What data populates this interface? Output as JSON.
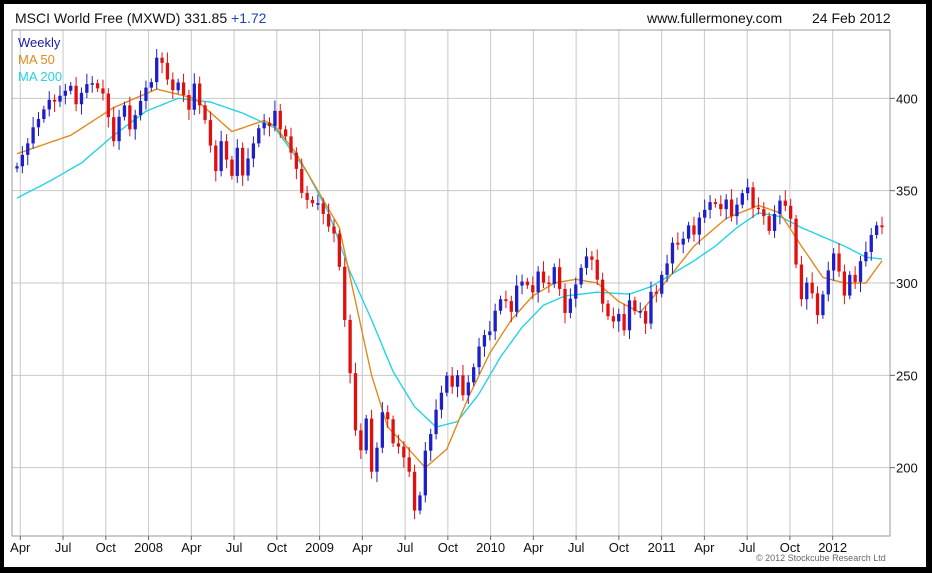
{
  "header": {
    "title": "MSCI World Free (MXWD) 331.85",
    "change": "+1.72",
    "website": "www.fullermoney.com",
    "date": "24 Feb 2012"
  },
  "footer": {
    "copyright": "© 2012 Stockcube Research Ltd"
  },
  "chart_data": {
    "type": "candlestick",
    "x_labels": [
      "Apr",
      "Jul",
      "Oct",
      "2008",
      "Apr",
      "Jul",
      "Oct",
      "2009",
      "Apr",
      "Jul",
      "Oct",
      "2010",
      "Apr",
      "Jul",
      "Oct",
      "2011",
      "Apr",
      "Jul",
      "Oct",
      "2012"
    ],
    "y_ticks": [
      200,
      250,
      300,
      350,
      400
    ],
    "ylim": [
      163,
      437
    ],
    "grid": true,
    "legend_position": "top-left",
    "colors": {
      "up": "#1f1fc8",
      "down": "#e01010",
      "ma50": "#e08a1e",
      "ma200": "#22d4e6",
      "grid": "#c8c8c8"
    },
    "series": [
      {
        "name": "Weekly",
        "style": "candles",
        "anchors": [
          [
            0,
            365
          ],
          [
            2,
            375
          ],
          [
            4,
            390
          ],
          [
            6,
            398
          ],
          [
            8,
            402
          ],
          [
            10,
            405
          ],
          [
            11,
            398
          ],
          [
            12,
            403
          ],
          [
            14,
            410
          ],
          [
            16,
            402
          ],
          [
            17,
            388
          ],
          [
            18,
            378
          ],
          [
            19,
            390
          ],
          [
            20,
            395
          ],
          [
            21,
            385
          ],
          [
            23,
            398
          ],
          [
            25,
            410
          ],
          [
            26,
            422
          ],
          [
            27,
            418
          ],
          [
            28,
            412
          ],
          [
            29,
            405
          ],
          [
            30,
            408
          ],
          [
            31,
            400
          ],
          [
            32,
            395
          ],
          [
            33,
            408
          ],
          [
            34,
            395
          ],
          [
            35,
            390
          ],
          [
            36,
            375
          ],
          [
            37,
            360
          ],
          [
            38,
            375
          ],
          [
            39,
            368
          ],
          [
            40,
            358
          ],
          [
            41,
            372
          ],
          [
            42,
            360
          ],
          [
            43,
            368
          ],
          [
            44,
            375
          ],
          [
            45,
            382
          ],
          [
            46,
            388
          ],
          [
            47,
            385
          ],
          [
            48,
            392
          ],
          [
            49,
            385
          ],
          [
            50,
            380
          ],
          [
            51,
            370
          ],
          [
            52,
            360
          ],
          [
            53,
            350
          ],
          [
            54,
            345
          ],
          [
            55,
            342
          ],
          [
            56,
            345
          ],
          [
            57,
            338
          ],
          [
            58,
            330
          ],
          [
            59,
            325
          ],
          [
            60,
            310
          ],
          [
            61,
            280
          ],
          [
            62,
            250
          ],
          [
            63,
            222
          ],
          [
            64,
            210
          ],
          [
            65,
            226
          ],
          [
            66,
            196
          ],
          [
            67,
            212
          ],
          [
            68,
            230
          ],
          [
            69,
            225
          ],
          [
            70,
            215
          ],
          [
            71,
            212
          ],
          [
            72,
            205
          ],
          [
            73,
            196
          ],
          [
            74,
            178
          ],
          [
            75,
            185
          ],
          [
            76,
            208
          ],
          [
            77,
            220
          ],
          [
            78,
            232
          ],
          [
            79,
            240
          ],
          [
            80,
            248
          ],
          [
            81,
            245
          ],
          [
            82,
            250
          ],
          [
            83,
            238
          ],
          [
            84,
            248
          ],
          [
            85,
            255
          ],
          [
            86,
            265
          ],
          [
            87,
            270
          ],
          [
            88,
            275
          ],
          [
            89,
            285
          ],
          [
            90,
            290
          ],
          [
            91,
            292
          ],
          [
            92,
            285
          ],
          [
            93,
            298
          ],
          [
            95,
            300
          ],
          [
            96,
            295
          ],
          [
            97,
            305
          ],
          [
            98,
            302
          ],
          [
            99,
            300
          ],
          [
            100,
            308
          ],
          [
            101,
            295
          ],
          [
            102,
            285
          ],
          [
            104,
            298
          ],
          [
            105,
            310
          ],
          [
            106,
            315
          ],
          [
            107,
            312
          ],
          [
            108,
            300
          ],
          [
            109,
            290
          ],
          [
            110,
            282
          ],
          [
            111,
            278
          ],
          [
            112,
            285
          ],
          [
            113,
            275
          ],
          [
            114,
            290
          ],
          [
            115,
            283
          ],
          [
            116,
            286
          ],
          [
            117,
            278
          ],
          [
            118,
            294
          ],
          [
            119,
            296
          ],
          [
            120,
            305
          ],
          [
            121,
            310
          ],
          [
            122,
            320
          ],
          [
            123,
            322
          ],
          [
            124,
            324
          ],
          [
            125,
            330
          ],
          [
            126,
            328
          ],
          [
            127,
            336
          ],
          [
            129,
            342
          ],
          [
            130,
            344
          ],
          [
            131,
            340
          ],
          [
            132,
            344
          ],
          [
            133,
            338
          ],
          [
            135,
            348
          ],
          [
            136,
            350
          ],
          [
            137,
            342
          ],
          [
            138,
            340
          ],
          [
            139,
            335
          ],
          [
            140,
            330
          ],
          [
            141,
            338
          ],
          [
            142,
            344
          ],
          [
            143,
            340
          ],
          [
            144,
            336
          ],
          [
            145,
            310
          ],
          [
            146,
            290
          ],
          [
            147,
            302
          ],
          [
            148,
            295
          ],
          [
            149,
            282
          ],
          [
            150,
            292
          ],
          [
            151,
            308
          ],
          [
            152,
            316
          ],
          [
            153,
            305
          ],
          [
            154,
            295
          ],
          [
            155,
            305
          ],
          [
            156,
            300
          ],
          [
            157,
            310
          ],
          [
            158,
            318
          ],
          [
            159,
            326
          ],
          [
            160,
            330
          ],
          [
            161,
            332
          ]
        ]
      },
      {
        "name": "MA 50",
        "style": "line",
        "points": [
          [
            0,
            370
          ],
          [
            10,
            380
          ],
          [
            18,
            395
          ],
          [
            26,
            405
          ],
          [
            33,
            400
          ],
          [
            40,
            382
          ],
          [
            46,
            388
          ],
          [
            48,
            385
          ],
          [
            52,
            370
          ],
          [
            56,
            350
          ],
          [
            60,
            330
          ],
          [
            63,
            290
          ],
          [
            66,
            250
          ],
          [
            69,
            222
          ],
          [
            72,
            213
          ],
          [
            76,
            200
          ],
          [
            80,
            210
          ],
          [
            84,
            238
          ],
          [
            88,
            262
          ],
          [
            92,
            280
          ],
          [
            96,
            293
          ],
          [
            100,
            300
          ],
          [
            104,
            302
          ],
          [
            108,
            300
          ],
          [
            112,
            290
          ],
          [
            116,
            284
          ],
          [
            120,
            298
          ],
          [
            126,
            320
          ],
          [
            132,
            335
          ],
          [
            138,
            342
          ],
          [
            142,
            338
          ],
          [
            146,
            320
          ],
          [
            150,
            303
          ],
          [
            154,
            300
          ],
          [
            158,
            300
          ],
          [
            161,
            312
          ]
        ]
      },
      {
        "name": "MA 200",
        "style": "line",
        "points": [
          [
            0,
            346
          ],
          [
            6,
            355
          ],
          [
            12,
            365
          ],
          [
            18,
            380
          ],
          [
            24,
            393
          ],
          [
            30,
            400
          ],
          [
            36,
            398
          ],
          [
            42,
            392
          ],
          [
            48,
            384
          ],
          [
            54,
            360
          ],
          [
            58,
            338
          ],
          [
            62,
            306
          ],
          [
            66,
            280
          ],
          [
            70,
            252
          ],
          [
            74,
            233
          ],
          [
            78,
            222
          ],
          [
            82,
            225
          ],
          [
            86,
            240
          ],
          [
            90,
            260
          ],
          [
            94,
            276
          ],
          [
            98,
            288
          ],
          [
            102,
            293
          ],
          [
            108,
            295
          ],
          [
            114,
            294
          ],
          [
            118,
            298
          ],
          [
            122,
            305
          ],
          [
            126,
            312
          ],
          [
            130,
            320
          ],
          [
            134,
            330
          ],
          [
            138,
            338
          ],
          [
            142,
            336
          ],
          [
            146,
            330
          ],
          [
            150,
            325
          ],
          [
            154,
            320
          ],
          [
            158,
            314
          ],
          [
            161,
            313
          ]
        ]
      }
    ]
  }
}
